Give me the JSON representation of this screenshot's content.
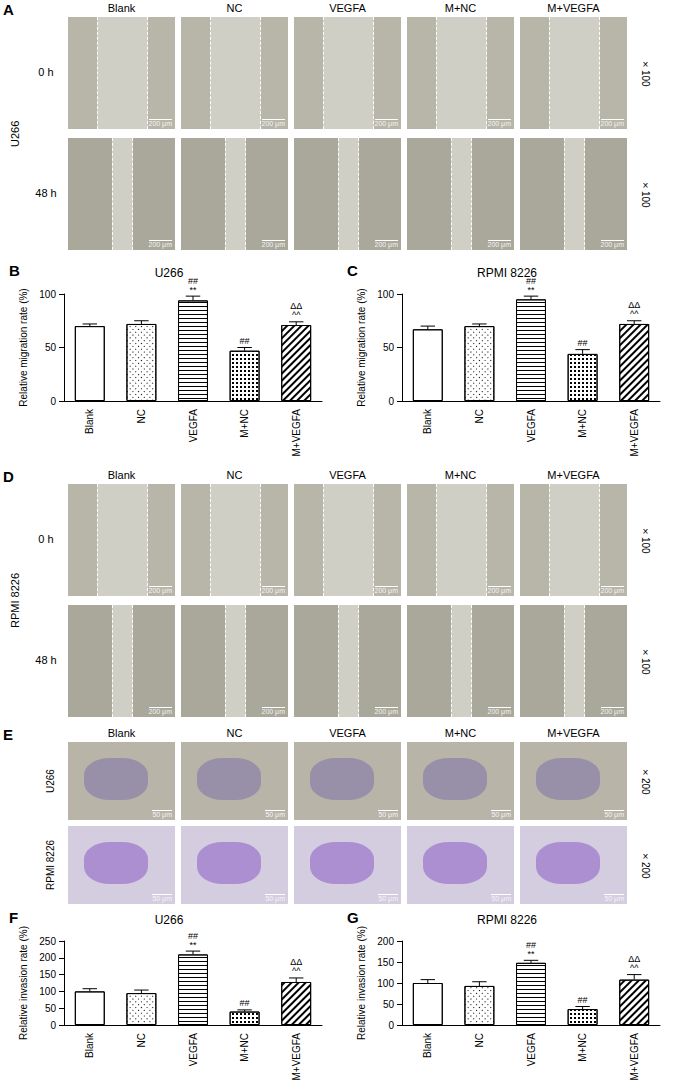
{
  "chart_data": [
    {
      "panel": "B",
      "type": "bar",
      "title": "U266",
      "y_label": "Relative migration rate (%)",
      "categories": [
        "Blank",
        "NC",
        "VEGFA",
        "M+NC",
        "M+VEGFA"
      ],
      "values": [
        70,
        72,
        94,
        47,
        71
      ],
      "errors": [
        2,
        3,
        4,
        3,
        3
      ],
      "annotations": [
        null,
        null,
        [
          "##",
          "**"
        ],
        [
          "##"
        ],
        [
          "ΔΔ",
          "^^"
        ]
      ],
      "colors": [
        "#ffffff",
        "#ffffff",
        "#ffffff",
        "#ffffff",
        "#ffffff"
      ],
      "ylim": [
        0,
        100
      ],
      "yticks": [
        0,
        50,
        100
      ],
      "grid": false
    },
    {
      "panel": "C",
      "type": "bar",
      "title": "RPMI 8226",
      "y_label": "Relative migration rate (%)",
      "categories": [
        "Blank",
        "NC",
        "VEGFA",
        "M+NC",
        "M+VEGFA"
      ],
      "values": [
        67,
        70,
        95,
        44,
        72
      ],
      "errors": [
        3,
        2,
        3,
        4,
        3
      ],
      "annotations": [
        null,
        null,
        [
          "##",
          "**"
        ],
        [
          "##"
        ],
        [
          "ΔΔ",
          "^^"
        ]
      ],
      "colors": [
        "#ffffff",
        "#ffffff",
        "#ffffff",
        "#ffffff",
        "#ffffff"
      ],
      "ylim": [
        0,
        100
      ],
      "yticks": [
        0,
        50,
        100
      ],
      "grid": false
    },
    {
      "panel": "F",
      "type": "bar",
      "title": "U266",
      "y_label": "Relative invasion rate (%)",
      "categories": [
        "Blank",
        "NC",
        "VEGFA",
        "M+NC",
        "M+VEGFA"
      ],
      "values": [
        100,
        95,
        210,
        40,
        128
      ],
      "errors": [
        8,
        9,
        10,
        5,
        12
      ],
      "annotations": [
        null,
        null,
        [
          "##",
          "**"
        ],
        [
          "##"
        ],
        [
          "ΔΔ",
          "^^"
        ]
      ],
      "colors": [
        "#ffffff",
        "#ffffff",
        "#ffffff",
        "#ffffff",
        "#ffffff"
      ],
      "ylim": [
        0,
        250
      ],
      "yticks": [
        0,
        50,
        100,
        150,
        200,
        250
      ],
      "grid": false
    },
    {
      "panel": "G",
      "type": "bar",
      "title": "RPMI 8226",
      "y_label": "Relative invasion rate (%)",
      "categories": [
        "Blank",
        "NC",
        "VEGFA",
        "M+NC",
        "M+VEGFA"
      ],
      "values": [
        100,
        93,
        148,
        38,
        108
      ],
      "errors": [
        8,
        10,
        6,
        6,
        12
      ],
      "annotations": [
        null,
        null,
        [
          "##",
          "**"
        ],
        [
          "##"
        ],
        [
          "ΔΔ",
          "^^"
        ]
      ],
      "colors": [
        "#ffffff",
        "#ffffff",
        "#ffffff",
        "#ffffff",
        "#ffffff"
      ],
      "ylim": [
        0,
        200
      ],
      "yticks": [
        0,
        50,
        100,
        150,
        200
      ],
      "grid": false
    }
  ],
  "panels": [
    {
      "panel": "A",
      "cell_line": "U266",
      "columns": [
        "Blank",
        "NC",
        "VEGFA",
        "M+NC",
        "M+VEGFA"
      ],
      "rows": [
        "0 h",
        "48 h"
      ],
      "magnification": "×100",
      "scale_bar": "200 μm"
    },
    {
      "panel": "D",
      "cell_line": "RPMI 8226",
      "columns": [
        "Blank",
        "NC",
        "VEGFA",
        "M+NC",
        "M+VEGFA"
      ],
      "rows": [
        "0 h",
        "48 h"
      ],
      "magnification": "×100",
      "scale_bar": "200 μm"
    },
    {
      "panel": "E",
      "columns": [
        "Blank",
        "NC",
        "VEGFA",
        "M+NC",
        "M+VEGFA"
      ],
      "rows": [
        "U266",
        "RPMI 8226"
      ],
      "magnification": "×200",
      "scale_bar": "50 μm"
    }
  ]
}
